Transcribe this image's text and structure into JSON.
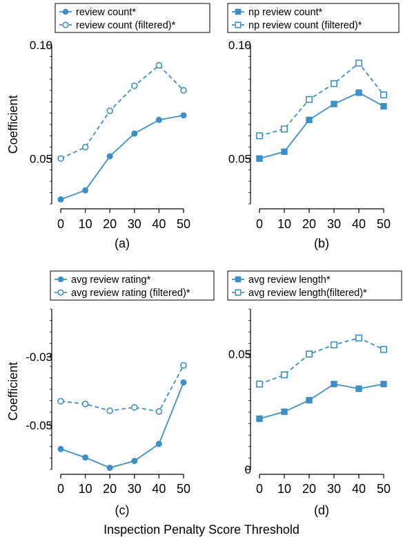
{
  "colors": {
    "series": "#3d8fc6",
    "axis": "#000000"
  },
  "chart_data": [
    {
      "type": "line",
      "caption": "(a)",
      "ylabel": "Coefficient",
      "x": [
        0,
        10,
        20,
        30,
        40,
        50
      ],
      "xticks": [
        "0",
        "10",
        "20",
        "30",
        "40",
        "50"
      ],
      "yticks": [
        {
          "v": 0.1,
          "label": "0.10"
        },
        {
          "v": 0.05,
          "label": "0.05"
        }
      ],
      "ylim": [
        0.03,
        0.1
      ],
      "marker": "circle",
      "legend": "top",
      "series": [
        {
          "name": "review count*",
          "style": "filled",
          "values": [
            0.032,
            0.036,
            0.051,
            0.061,
            0.067,
            0.069
          ]
        },
        {
          "name": "review count (filtered)*",
          "style": "open",
          "values": [
            0.05,
            0.055,
            0.071,
            0.082,
            0.091,
            0.08
          ]
        }
      ]
    },
    {
      "type": "line",
      "caption": "(b)",
      "ylabel": "",
      "x": [
        0,
        10,
        20,
        30,
        40,
        50
      ],
      "xticks": [
        "0",
        "10",
        "20",
        "30",
        "40",
        "50"
      ],
      "yticks": [
        {
          "v": 0.1,
          "label": "0.10"
        },
        {
          "v": 0.05,
          "label": "0.05"
        }
      ],
      "ylim": [
        0.03,
        0.1
      ],
      "marker": "square",
      "legend": "top",
      "series": [
        {
          "name": "np review count*",
          "style": "filled",
          "values": [
            0.05,
            0.053,
            0.067,
            0.074,
            0.079,
            0.073
          ]
        },
        {
          "name": "np review count (filtered)*",
          "style": "open",
          "values": [
            0.06,
            0.063,
            0.076,
            0.083,
            0.092,
            0.078
          ]
        }
      ]
    },
    {
      "type": "line",
      "caption": "(c)",
      "ylabel": "Coefficient",
      "x": [
        0,
        10,
        20,
        30,
        40,
        50
      ],
      "xticks": [
        "0",
        "10",
        "20",
        "30",
        "40",
        "50"
      ],
      "yticks": [
        {
          "v": -0.03,
          "label": "-0.03"
        },
        {
          "v": -0.05,
          "label": "-0.05"
        }
      ],
      "ylim": [
        -0.063,
        -0.016
      ],
      "marker": "circle",
      "legend": "top",
      "series": [
        {
          "name": "avg review rating*",
          "style": "filled",
          "values": [
            -0.057,
            -0.0595,
            -0.0625,
            -0.0605,
            -0.0555,
            -0.0375
          ]
        },
        {
          "name": "avg review rating (filtered)*",
          "style": "open",
          "values": [
            -0.043,
            -0.0438,
            -0.0458,
            -0.0448,
            -0.046,
            -0.0325
          ]
        }
      ]
    },
    {
      "type": "line",
      "caption": "(d)",
      "ylabel": "",
      "x": [
        0,
        10,
        20,
        30,
        40,
        50
      ],
      "xticks": [
        "0",
        "10",
        "20",
        "30",
        "40",
        "50"
      ],
      "yticks": [
        {
          "v": 0.05,
          "label": "0.05"
        },
        {
          "v": 0,
          "label": "0"
        }
      ],
      "ylim": [
        0,
        0.0695
      ],
      "marker": "square",
      "legend": "top",
      "series": [
        {
          "name": "avg review length*",
          "style": "filled",
          "values": [
            0.022,
            0.025,
            0.03,
            0.037,
            0.035,
            0.037
          ]
        },
        {
          "name": "avg review length(filtered)*",
          "style": "open",
          "values": [
            0.037,
            0.041,
            0.05,
            0.054,
            0.057,
            0.052
          ]
        }
      ]
    }
  ],
  "xlabel": "Inspection Penalty Score Threshold"
}
